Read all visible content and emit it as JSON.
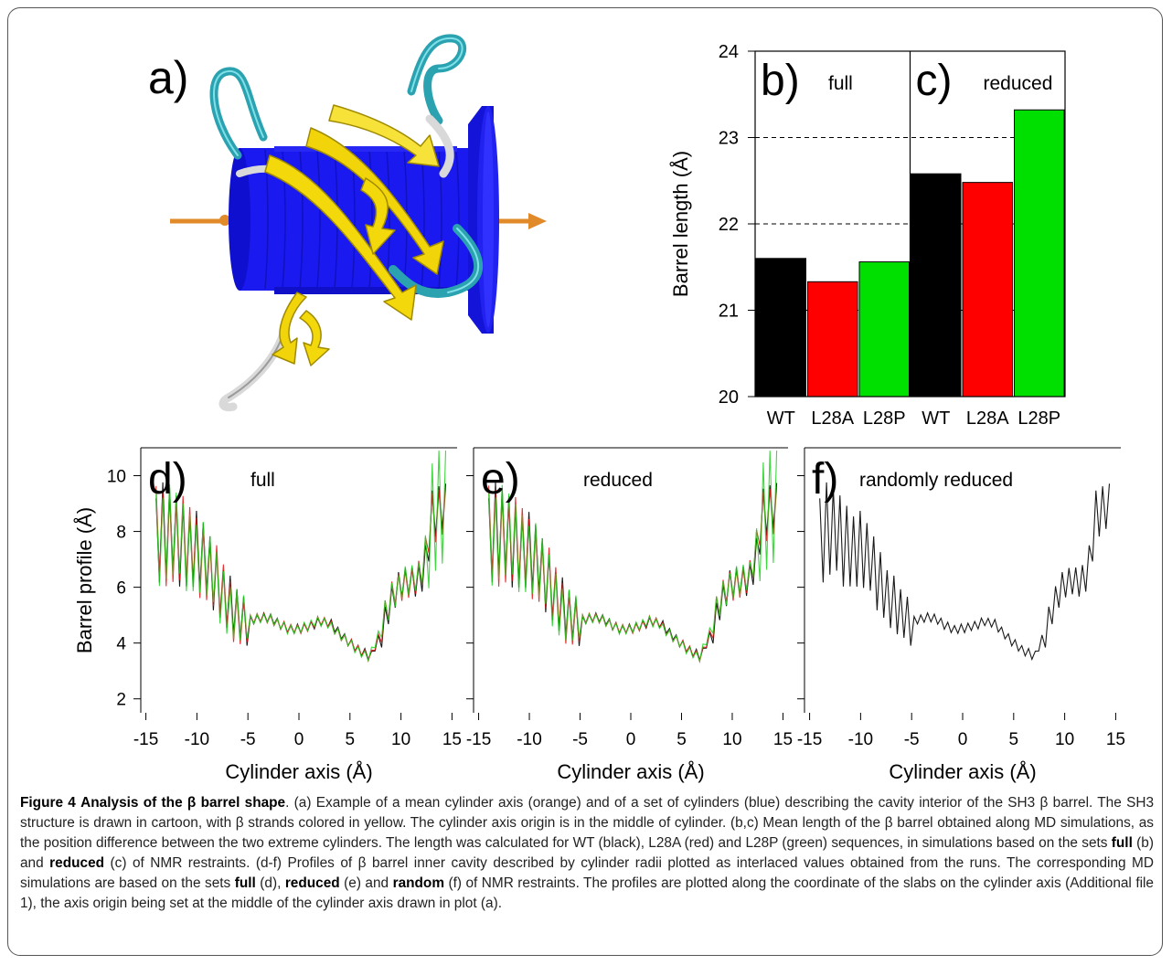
{
  "panel_a": {
    "label": "a)",
    "colors": {
      "cylinder": "#1a1af0",
      "axis": "#e08a2a",
      "strand": "#f3d80c",
      "loop": "#2aa2b0",
      "coil": "#d9d9d9"
    }
  },
  "chart_data": [
    {
      "type": "bar",
      "panels": [
        {
          "label": "b)",
          "subtitle": "full",
          "categories": [
            "WT",
            "L28A",
            "L28P"
          ],
          "values": [
            21.6,
            21.33,
            21.56
          ]
        },
        {
          "label": "c)",
          "subtitle": "reduced",
          "categories": [
            "WT",
            "L28A",
            "L28P"
          ],
          "values": [
            22.58,
            22.48,
            23.32
          ]
        }
      ],
      "colors": [
        "#000000",
        "#ff0000",
        "#00e000"
      ],
      "ylabel": "Barrel length (Å)",
      "ylim": [
        20,
        24
      ],
      "yticks": [
        "20",
        "21",
        "22",
        "23",
        "24"
      ],
      "grid": "dashed horizontal at 21, 22, 23"
    },
    {
      "type": "line",
      "panels": [
        {
          "label": "d)",
          "subtitle": "full",
          "series": [
            "black",
            "red",
            "green"
          ]
        },
        {
          "label": "e)",
          "subtitle": "reduced",
          "series": [
            "black",
            "red",
            "green"
          ]
        },
        {
          "label": "f)",
          "subtitle": "randomly reduced",
          "series": [
            "black"
          ]
        }
      ],
      "profile_shape": {
        "x": [
          -14,
          -13,
          -12,
          -11,
          -10,
          -9,
          -8,
          -7,
          -6,
          -5,
          -4,
          -3,
          -2,
          -1,
          0,
          1,
          2,
          3,
          4,
          5,
          6,
          7,
          8,
          9,
          10,
          11,
          12,
          13,
          14,
          15
        ],
        "y": [
          7.8,
          7.9,
          7.8,
          7.5,
          7.2,
          6.8,
          6.2,
          5.4,
          4.9,
          4.8,
          4.9,
          4.9,
          4.7,
          4.5,
          4.5,
          4.6,
          4.8,
          4.7,
          4.3,
          4.0,
          3.7,
          3.5,
          4.4,
          5.6,
          6.1,
          6.2,
          6.4,
          8.5,
          8.8,
          9.0
        ]
      },
      "xlabel": "Cylinder axis (Å)",
      "ylabel": "Barrel profile (Å)",
      "xticks": [
        "-15",
        "-10",
        "-5",
        "0",
        "5",
        "10",
        "15"
      ],
      "yticks": [
        "2",
        "4",
        "6",
        "8",
        "10"
      ],
      "xlim": [
        -15.5,
        15.5
      ],
      "ylim": [
        1.5,
        11
      ]
    }
  ],
  "caption": {
    "figure": "Figure 4",
    "title_pre": "Analysis of the ",
    "beta": "β",
    "title_post": " barrel shape",
    "t1": ". (a) Example of a mean cylinder axis (orange) and of a set of cylinders (blue) describing the cavity interior of the SH3 ",
    "t2": " barrel. The SH3 structure is drawn in cartoon, with ",
    "t3": " strands colored in yellow. The cylinder axis origin is in the middle of cylinder. (b,c) Mean length of the ",
    "t4": " barrel obtained along MD simulations, as the position difference between the two extreme cylinders. The length was calculated for WT (black), L28A (red) and L28P (green) sequences, in simulations based on the sets ",
    "full": "full",
    "t5": " (b) and ",
    "reduced": "reduced",
    "t6": " (c) of NMR restraints. (d-f) Profiles of ",
    "t7": " barrel inner cavity described by cylinder radii plotted as interlaced values obtained from the runs. The corresponding MD simulations are based on the sets ",
    "t8": " (d), ",
    "t9": " (e) and ",
    "random": "random",
    "t10": " (f) of NMR restraints. The profiles are plotted along the coordinate of the slabs on the cylinder axis (Additional file 1), the axis origin being set at the middle of the cylinder axis drawn in plot (a)."
  }
}
